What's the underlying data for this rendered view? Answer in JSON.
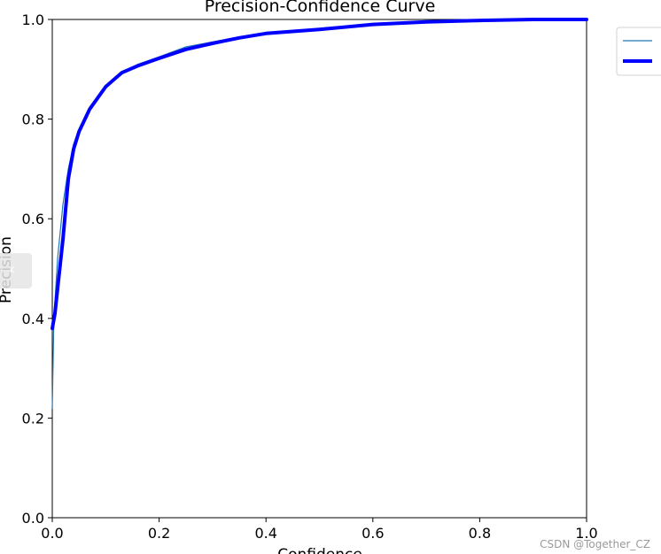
{
  "chart_data": {
    "type": "line",
    "title": "Precision-Confidence Curve",
    "xlabel": "Confidence",
    "ylabel": "Precision",
    "xlim": [
      0.0,
      1.0
    ],
    "ylim": [
      0.0,
      1.0
    ],
    "x_ticks": [
      "0.0",
      "0.2",
      "0.4",
      "0.6",
      "0.8",
      "1.0"
    ],
    "y_ticks": [
      "0.0",
      "0.2",
      "0.4",
      "0.6",
      "0.8",
      "1.0"
    ],
    "grid": false,
    "legend": {
      "placement": "top-right outside"
    },
    "series": [
      {
        "color": "#1f77b4",
        "style": "thin",
        "points": [
          [
            0.0,
            0.22
          ],
          [
            0.003,
            0.4
          ],
          [
            0.01,
            0.52
          ],
          [
            0.02,
            0.63
          ],
          [
            0.03,
            0.7
          ],
          [
            0.04,
            0.75
          ],
          [
            0.05,
            0.78
          ],
          [
            0.07,
            0.82
          ],
          [
            0.1,
            0.865
          ],
          [
            0.13,
            0.895
          ],
          [
            0.16,
            0.91
          ],
          [
            0.2,
            0.925
          ],
          [
            0.25,
            0.945
          ],
          [
            0.3,
            0.955
          ],
          [
            0.35,
            0.965
          ],
          [
            0.4,
            0.973
          ],
          [
            0.5,
            0.98
          ],
          [
            0.6,
            0.99
          ],
          [
            0.7,
            0.995
          ],
          [
            0.8,
            0.998
          ],
          [
            0.9,
            1.0
          ],
          [
            1.0,
            1.0
          ]
        ]
      },
      {
        "color": "#0000ff",
        "style": "thick",
        "points": [
          [
            0.0,
            0.38
          ],
          [
            0.005,
            0.41
          ],
          [
            0.01,
            0.46
          ],
          [
            0.02,
            0.56
          ],
          [
            0.03,
            0.68
          ],
          [
            0.04,
            0.74
          ],
          [
            0.05,
            0.775
          ],
          [
            0.07,
            0.82
          ],
          [
            0.1,
            0.865
          ],
          [
            0.13,
            0.893
          ],
          [
            0.16,
            0.907
          ],
          [
            0.2,
            0.922
          ],
          [
            0.25,
            0.94
          ],
          [
            0.3,
            0.952
          ],
          [
            0.35,
            0.963
          ],
          [
            0.4,
            0.972
          ],
          [
            0.5,
            0.98
          ],
          [
            0.6,
            0.99
          ],
          [
            0.7,
            0.995
          ],
          [
            0.8,
            0.998
          ],
          [
            0.9,
            1.0
          ],
          [
            1.0,
            1.0
          ]
        ]
      }
    ]
  },
  "watermark": "CSDN @Together_CZ",
  "nav_icon": "chevron-left-icon"
}
